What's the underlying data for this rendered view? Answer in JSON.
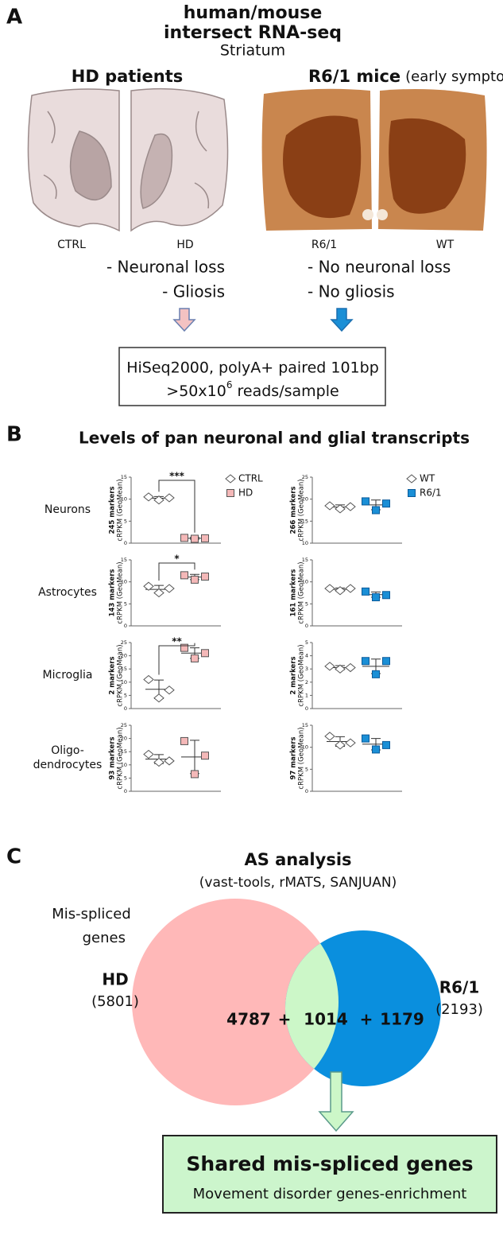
{
  "panel_a": {
    "letter": "A",
    "title": [
      "human/mouse",
      "intersect RNA-seq"
    ],
    "subtitle": "Striatum",
    "human_title": "HD patients",
    "mouse_title": "R6/1 mice",
    "mouse_note": "(early symptoms)",
    "image_labels": [
      "CTRL",
      "HD",
      "R6/1",
      "WT"
    ],
    "human_findings": [
      "- Neuronal loss",
      "- Gliosis"
    ],
    "mouse_findings": [
      "- No neuronal loss",
      "- No gliosis"
    ],
    "box_line1": "HiSeq2000, polyA+ paired 101bp",
    "box_line2": [
      ">50x10",
      "6",
      " reads/sample"
    ]
  },
  "panel_b": {
    "letter": "B",
    "title": "Levels of pan neuronal and glial transcripts",
    "rows": [
      [
        "Neurons"
      ],
      [
        "Astrocytes"
      ],
      [
        "Microglia"
      ],
      [
        "Oligo-",
        "dendrocytes"
      ]
    ]
  },
  "chart_data": [
    {
      "type": "dot",
      "ylabel": [
        "245 markers",
        "cRPKM (GeoMean)"
      ],
      "ylim": [
        0,
        15
      ],
      "yticks": [
        0,
        5,
        10,
        15
      ],
      "annotation": "***",
      "series": [
        {
          "name": "CTRL",
          "color": "#ffffff",
          "marker": "diamond",
          "values": [
            10.5,
            9.8,
            10.3
          ],
          "mean": 10.2,
          "error": 0.4
        },
        {
          "name": "HD",
          "color": "#f4b8b8",
          "marker": "square",
          "values": [
            1.2,
            1.0,
            1.1
          ],
          "mean": 1.1,
          "error": 0.2
        }
      ]
    },
    {
      "type": "dot",
      "ylabel": [
        "266 markers",
        "cRPKM (GeoMean)"
      ],
      "ylim": [
        10,
        25
      ],
      "yticks": [
        10,
        15,
        20,
        25
      ],
      "series": [
        {
          "name": "WT",
          "color": "#ffffff",
          "marker": "diamond",
          "values": [
            18.5,
            17.8,
            18.3
          ],
          "mean": 18.2,
          "error": 0.5
        },
        {
          "name": "R6/1",
          "color": "#1a8fd6",
          "marker": "square",
          "values": [
            19.5,
            17.5,
            19.0
          ],
          "mean": 18.7,
          "error": 1.1
        }
      ]
    },
    {
      "type": "dot",
      "ylabel": [
        "143 markers",
        "cRPKM (GeoMean)"
      ],
      "ylim": [
        0,
        15
      ],
      "yticks": [
        0,
        5,
        10,
        15
      ],
      "annotation": "*",
      "series": [
        {
          "color": "#ffffff",
          "marker": "diamond",
          "values": [
            9.0,
            7.5,
            8.5
          ],
          "mean": 8.3,
          "error": 0.9
        },
        {
          "color": "#f4b8b8",
          "marker": "square",
          "values": [
            11.5,
            10.5,
            11.2
          ],
          "mean": 11.1,
          "error": 0.6
        }
      ]
    },
    {
      "type": "dot",
      "ylabel": [
        "161 markers",
        "cRPKM (GeoMean)"
      ],
      "ylim": [
        0,
        15
      ],
      "yticks": [
        0,
        5,
        10,
        15
      ],
      "series": [
        {
          "color": "#ffffff",
          "marker": "diamond",
          "values": [
            8.5,
            8.0,
            8.5
          ],
          "mean": 8.3,
          "error": 0.3
        },
        {
          "color": "#1a8fd6",
          "marker": "square",
          "values": [
            7.8,
            6.5,
            7.0
          ],
          "mean": 7.1,
          "error": 0.6
        }
      ]
    },
    {
      "type": "dot",
      "ylabel": [
        "2 markers",
        "cRPKM (GeoMean)"
      ],
      "ylim": [
        0,
        25
      ],
      "yticks": [
        0,
        5,
        10,
        15,
        20,
        25
      ],
      "annotation": "**",
      "series": [
        {
          "color": "#ffffff",
          "marker": "diamond",
          "values": [
            11.0,
            4.0,
            7.0
          ],
          "mean": 7.3,
          "error": 3.5
        },
        {
          "color": "#f4b8b8",
          "marker": "square",
          "values": [
            23.0,
            19.0,
            21.0
          ],
          "mean": 21.0,
          "error": 2.0
        }
      ]
    },
    {
      "type": "dot",
      "ylabel": [
        "2 markers",
        "cRPKM (GeoMean)"
      ],
      "ylim": [
        0,
        5
      ],
      "yticks": [
        0,
        1,
        2,
        3,
        4,
        5
      ],
      "series": [
        {
          "color": "#ffffff",
          "marker": "diamond",
          "values": [
            3.2,
            3.0,
            3.1
          ],
          "mean": 3.1,
          "error": 0.15
        },
        {
          "color": "#1a8fd6",
          "marker": "square",
          "values": [
            3.6,
            2.6,
            3.6
          ],
          "mean": 3.2,
          "error": 0.55
        }
      ]
    },
    {
      "type": "dot",
      "ylabel": [
        "93 markers",
        "cRPKM (GeoMean)"
      ],
      "ylim": [
        0,
        25
      ],
      "yticks": [
        0,
        5,
        10,
        15,
        20,
        25
      ],
      "series": [
        {
          "color": "#ffffff",
          "marker": "diamond",
          "values": [
            14.0,
            11.0,
            11.5
          ],
          "mean": 12.2,
          "error": 1.7
        },
        {
          "color": "#f4b8b8",
          "marker": "square",
          "values": [
            19.0,
            6.5,
            13.5
          ],
          "mean": 13.0,
          "error": 6.3
        }
      ]
    },
    {
      "type": "dot",
      "ylabel": [
        "97 markers",
        "cRPKM (GeoMean)"
      ],
      "ylim": [
        0,
        15
      ],
      "yticks": [
        0,
        5,
        10,
        15
      ],
      "series": [
        {
          "color": "#ffffff",
          "marker": "diamond",
          "values": [
            12.5,
            10.5,
            11.0
          ],
          "mean": 11.3,
          "error": 1.1
        },
        {
          "color": "#1a8fd6",
          "marker": "square",
          "values": [
            12.0,
            9.5,
            10.5
          ],
          "mean": 10.7,
          "error": 1.3
        }
      ]
    }
  ],
  "panel_c": {
    "letter": "C",
    "title": "AS analysis",
    "subtitle": "(vast-tools, rMATS, SANJUAN)",
    "venn_label": [
      "Mis-spliced",
      "genes"
    ],
    "left_set": "HD",
    "left_total": "(5801)",
    "right_set": "R6/1",
    "right_total": "(2193)",
    "counts": [
      "4787",
      "+",
      "1014",
      "+",
      "1179"
    ],
    "result_title": "Shared mis-spliced genes",
    "result_note": "Movement disorder genes-enrichment"
  }
}
